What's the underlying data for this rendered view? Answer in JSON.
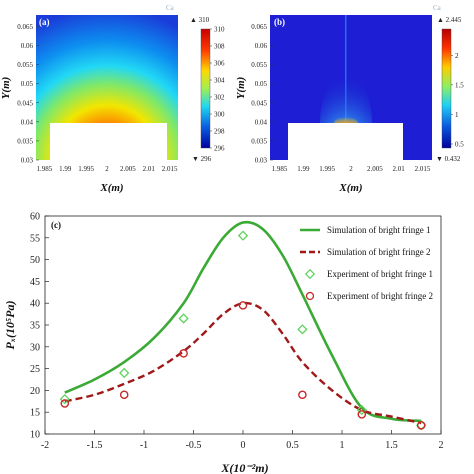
{
  "chart_data": [
    {
      "type": "heatmap",
      "panel_label": "(a)",
      "xlabel": "X(m)",
      "ylabel": "Y(m)",
      "x_ticks": [
        "1.985",
        "1.99",
        "1.995",
        "2",
        "2.005",
        "2.01",
        "2.015"
      ],
      "y_ticks": [
        "0.03",
        "0.035",
        "0.04",
        "0.045",
        "0.05",
        "0.055",
        "0.06",
        "0.065"
      ],
      "xlim": [
        1.983,
        2.017
      ],
      "ylim": [
        0.03,
        0.068
      ],
      "colorbar": {
        "max_label": "▲ 310",
        "min_label": "▼ 296",
        "ticks": [
          "310",
          "308",
          "306",
          "304",
          "302",
          "300",
          "298",
          "296"
        ],
        "range": [
          296,
          310
        ]
      },
      "colors": [
        "#0a0aa0",
        "#00b4ff",
        "#f0f000",
        "#d00000"
      ]
    },
    {
      "type": "heatmap",
      "panel_label": "(b)",
      "xlabel": "X(m)",
      "ylabel": "Y(m)",
      "x_ticks": [
        "1.985",
        "1.99",
        "1.995",
        "2",
        "2.005",
        "2.01",
        "2.015"
      ],
      "y_ticks": [
        "0.03",
        "0.035",
        "0.04",
        "0.045",
        "0.05",
        "0.055",
        "0.06",
        "0.065"
      ],
      "xlim": [
        1.983,
        2.017
      ],
      "ylim": [
        0.03,
        0.068
      ],
      "colorbar": {
        "max_label": "▲ 2.445",
        "min_label": "▼ 0.432",
        "ticks": [
          "2",
          "1.5",
          "1",
          "0.5"
        ],
        "range": [
          0.432,
          2.445
        ]
      },
      "colors": [
        "#0000b4",
        "#00c8ff",
        "#ffe000",
        "#c80000"
      ]
    },
    {
      "type": "line",
      "panel_label": "(c)",
      "xlabel": "X(10⁻²m)",
      "ylabel": "Pₓ(10⁵Pa)",
      "xlim": [
        -2,
        2
      ],
      "ylim": [
        10,
        60
      ],
      "x_ticks": [
        "-2",
        "-1.5",
        "-1",
        "-0.5",
        "0",
        "0.5",
        "1",
        "1.5",
        "2"
      ],
      "y_ticks": [
        "10",
        "15",
        "20",
        "25",
        "30",
        "35",
        "40",
        "45",
        "50",
        "55",
        "60"
      ],
      "series": [
        {
          "name": "Simulation of bright fringe 1",
          "kind": "line",
          "color": "#3aaa35",
          "x": [
            -1.8,
            -1.5,
            -1.2,
            -0.9,
            -0.6,
            -0.4,
            -0.2,
            0,
            0.2,
            0.4,
            0.6,
            0.9,
            1.2,
            1.5,
            1.8
          ],
          "y": [
            19.5,
            22.5,
            26.5,
            32,
            40,
            48,
            55,
            58.5,
            57,
            51,
            42,
            28,
            16,
            13.5,
            13
          ]
        },
        {
          "name": "Simulation of bright fringe 2",
          "kind": "dashed",
          "color": "#a01818",
          "x": [
            -1.8,
            -1.5,
            -1.2,
            -0.9,
            -0.6,
            -0.4,
            -0.2,
            0,
            0.2,
            0.4,
            0.6,
            0.9,
            1.2,
            1.5,
            1.8
          ],
          "y": [
            17.5,
            19,
            21.5,
            24.5,
            29,
            33,
            37.5,
            40,
            38.5,
            33,
            26.5,
            20,
            15.5,
            14,
            12.5
          ]
        },
        {
          "name": "Experiment of bright fringe 1",
          "kind": "diamond",
          "color": "#5dd35d",
          "x": [
            -1.8,
            -1.2,
            -0.6,
            0,
            0.6,
            1.2,
            1.8
          ],
          "y": [
            18,
            24,
            36.5,
            55.5,
            34,
            15.5,
            12
          ]
        },
        {
          "name": "Experiment of bright fringe 2",
          "kind": "circle",
          "color": "#c82828",
          "x": [
            -1.8,
            -1.2,
            -0.6,
            0,
            0.6,
            1.2,
            1.8
          ],
          "y": [
            17,
            19,
            28.5,
            39.5,
            19,
            14.5,
            12
          ]
        }
      ]
    }
  ],
  "watermarks": [
    "Ca",
    "Ca"
  ]
}
